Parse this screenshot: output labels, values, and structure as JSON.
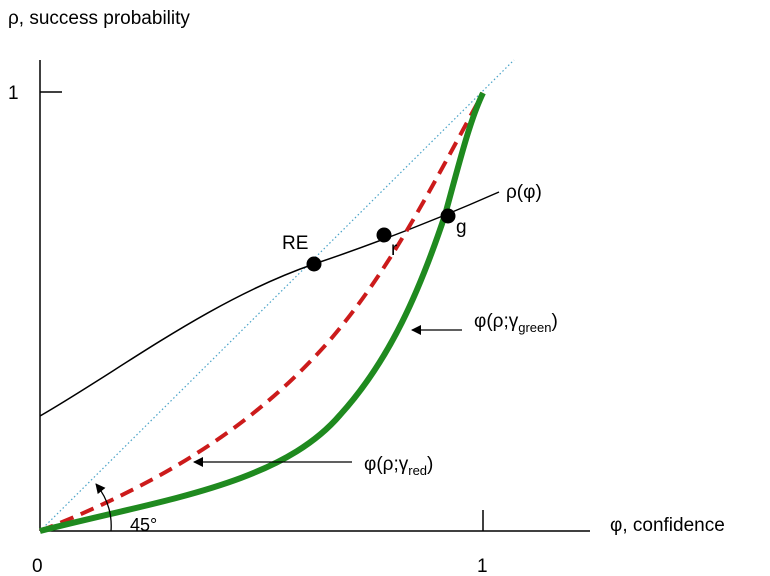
{
  "axes": {
    "y_label": "ρ, success probability",
    "x_label": "φ, confidence",
    "origin": "0",
    "x_tick": "1",
    "y_tick": "1",
    "angle": "45°"
  },
  "curves": {
    "rho": {
      "label_main": "ρ(φ)",
      "color": "#000000"
    },
    "red": {
      "label_pre": "φ(ρ;γ",
      "label_sub": "red",
      "label_post": ")",
      "color": "#cc1b1b",
      "style": "dashed"
    },
    "green": {
      "label_pre": "φ(ρ;γ",
      "label_sub": "green",
      "label_post": ")",
      "color": "#1f8a1f",
      "style": "solid-thick"
    },
    "diagonal": {
      "color": "#4aa3c8",
      "style": "dotted"
    }
  },
  "points": {
    "RE": "RE",
    "r": "r",
    "g": "g"
  }
}
